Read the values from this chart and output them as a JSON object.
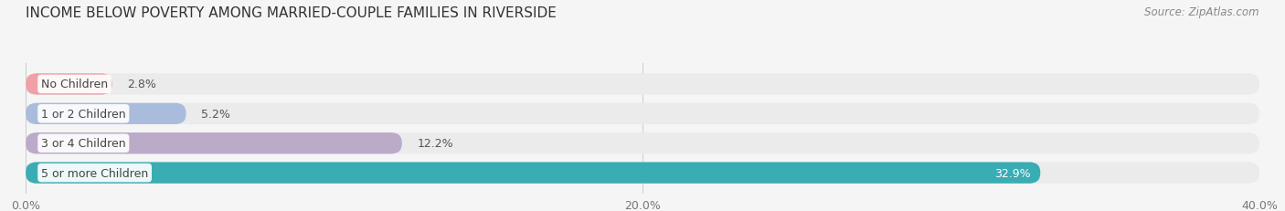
{
  "title": "INCOME BELOW POVERTY AMONG MARRIED-COUPLE FAMILIES IN RIVERSIDE",
  "source": "Source: ZipAtlas.com",
  "categories": [
    "No Children",
    "1 or 2 Children",
    "3 or 4 Children",
    "5 or more Children"
  ],
  "values": [
    2.8,
    5.2,
    12.2,
    32.9
  ],
  "bar_colors": [
    "#f0a0a8",
    "#aabcdc",
    "#bbaac8",
    "#3aacb4"
  ],
  "label_colors": [
    "#555555",
    "#555555",
    "#555555",
    "#555555"
  ],
  "value_label_colors": [
    "#555555",
    "#555555",
    "#555555",
    "#ffffff"
  ],
  "xlim": [
    0,
    40
  ],
  "xticks": [
    0.0,
    20.0,
    40.0
  ],
  "xtick_labels": [
    "0.0%",
    "20.0%",
    "40.0%"
  ],
  "bg_color": "#f5f5f5",
  "bar_bg_color": "#ebebeb",
  "title_fontsize": 11,
  "source_fontsize": 8.5,
  "label_fontsize": 9,
  "value_fontsize": 9,
  "tick_fontsize": 9,
  "bar_height": 0.72,
  "fig_width": 14.06,
  "fig_height": 2.32
}
